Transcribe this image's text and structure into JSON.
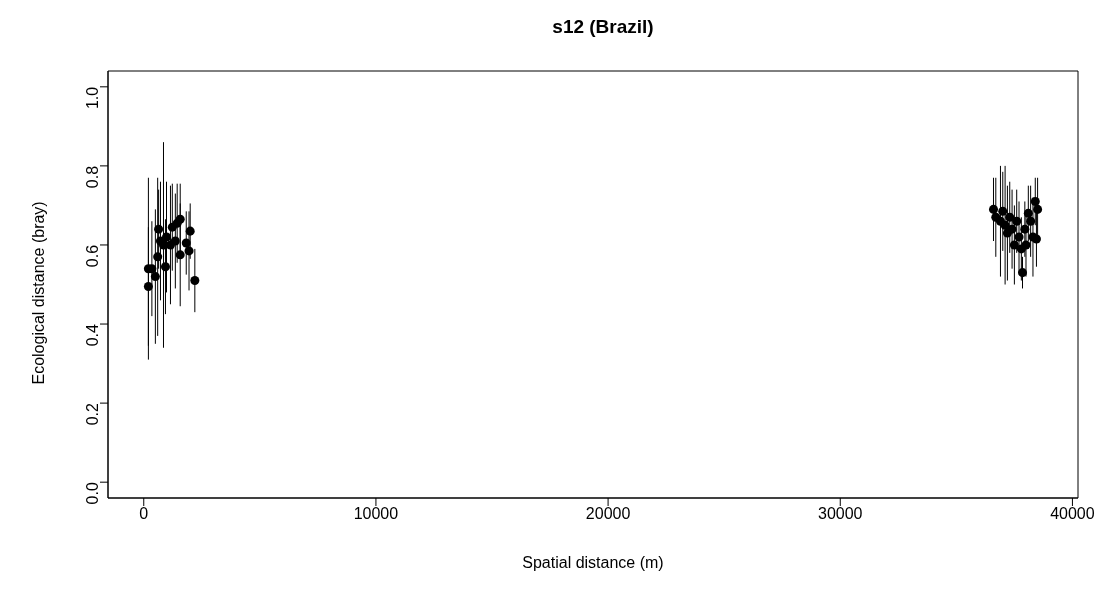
{
  "chart_data": {
    "type": "scatter",
    "title": "s12 (Brazil)",
    "xlabel": "Spatial distance (m)",
    "ylabel": "Ecological distance (bray)",
    "xlim": [
      -1540,
      40240
    ],
    "xticks": [
      0,
      10000,
      20000,
      30000,
      40000
    ],
    "ylim": [
      -0.04,
      1.04
    ],
    "yticks": [
      {
        "value": 0,
        "label": "0.0"
      },
      {
        "value": 0.2,
        "label": "0.2"
      },
      {
        "value": 0.4,
        "label": "0.4"
      },
      {
        "value": 0.6,
        "label": "0.6"
      },
      {
        "value": 0.8,
        "label": "0.8"
      },
      {
        "value": 1,
        "label": "1.0"
      }
    ],
    "grid": false,
    "legend": false,
    "marker": "circle",
    "series": [
      {
        "color": "#000000",
        "x": [
          200,
          200,
          350,
          500,
          600,
          640,
          720,
          850,
          935,
          980,
          1150,
          1230,
          1360,
          1440,
          1570,
          1570,
          1830,
          1950,
          2000,
          2200,
          36600,
          36700,
          36900,
          37000,
          37100,
          37200,
          37300,
          37400,
          37500,
          37600,
          37700,
          37800,
          37850,
          37950,
          38000,
          38100,
          38200,
          38300,
          38400,
          38450,
          38500
        ],
        "values": [
          0.54,
          0.495,
          0.54,
          0.52,
          0.57,
          0.64,
          0.61,
          0.6,
          0.545,
          0.62,
          0.6,
          0.645,
          0.61,
          0.655,
          0.575,
          0.665,
          0.605,
          0.585,
          0.635,
          0.51,
          0.69,
          0.67,
          0.66,
          0.685,
          0.65,
          0.63,
          0.67,
          0.64,
          0.6,
          0.66,
          0.62,
          0.59,
          0.53,
          0.64,
          0.6,
          0.68,
          0.66,
          0.62,
          0.71,
          0.615,
          0.69
        ],
        "errors": [
          0.23,
          0.15,
          0.12,
          0.17,
          0.2,
          0.1,
          0.15,
          0.26,
          0.12,
          0.14,
          0.15,
          0.11,
          0.12,
          0.1,
          0.13,
          0.09,
          0.08,
          0.1,
          0.07,
          0.08,
          0.08,
          0.1,
          0.14,
          0.1,
          0.15,
          0.12,
          0.09,
          0.1,
          0.1,
          0.08,
          0.09,
          0.08,
          0.04,
          0.07,
          0.08,
          0.07,
          0.09,
          0.1,
          0.06,
          0.07,
          0.08
        ]
      }
    ]
  }
}
